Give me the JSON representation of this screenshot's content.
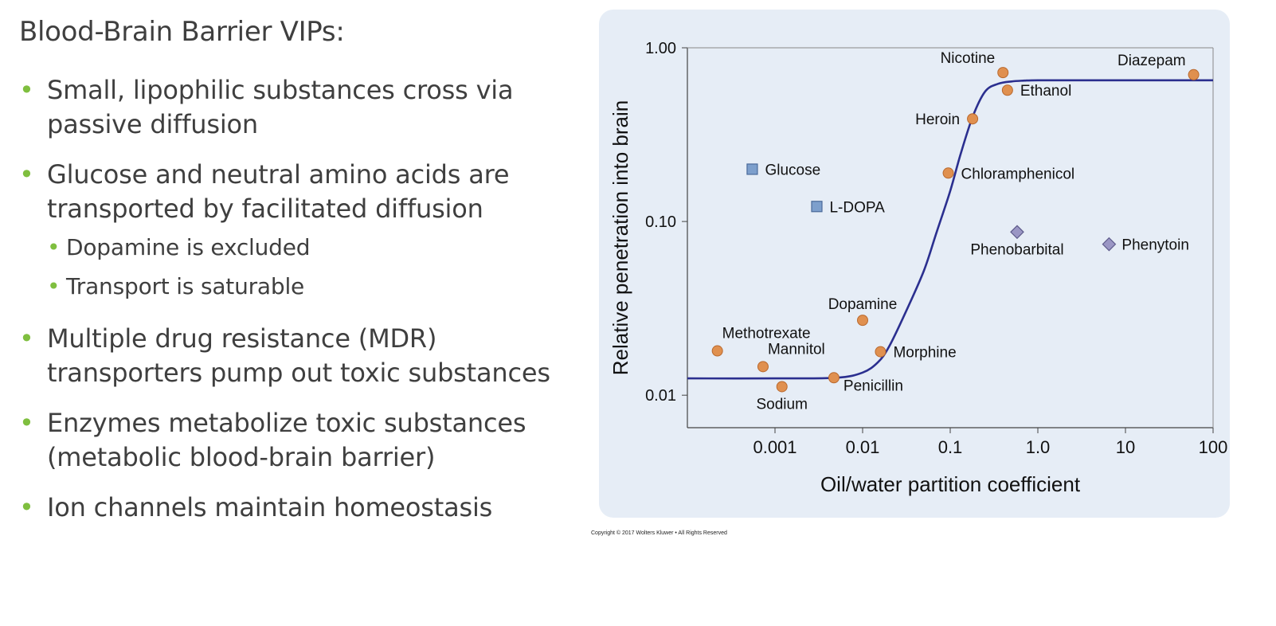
{
  "slide": {
    "title": "Blood-Brain Barrier VIPs:",
    "bullets": [
      {
        "text": "Small, lipophilic substances cross via passive diffusion",
        "subs": []
      },
      {
        "text": "Glucose and neutral amino acids are transported by facilitated diffusion",
        "subs": [
          "Dopamine is excluded",
          "Transport is saturable"
        ]
      },
      {
        "text": "Multiple drug resistance (MDR) transporters pump out toxic substances",
        "subs": []
      },
      {
        "text": "Enzymes metabolize toxic substances (metabolic blood-brain barrier)",
        "subs": []
      },
      {
        "text": "Ion channels maintain homeostasis",
        "subs": []
      }
    ],
    "bullet_color": "#7fbf3f"
  },
  "copyright": "Copyright © 2017 Wolters Kluwer • All Rights Reserved",
  "chart_data": {
    "type": "scatter",
    "title": "",
    "xlabel": "Oil/water partition coefficient",
    "ylabel": "Relative penetration into brain",
    "xscale": "log",
    "yscale": "log",
    "xlim": [
      0.0001,
      100
    ],
    "ylim": [
      0.0065,
      1.0
    ],
    "xticks": [
      {
        "value": 0.001,
        "label": "0.001"
      },
      {
        "value": 0.01,
        "label": "0.01"
      },
      {
        "value": 0.1,
        "label": "0.1"
      },
      {
        "value": 1,
        "label": "1.0"
      },
      {
        "value": 10,
        "label": "10"
      },
      {
        "value": 100,
        "label": "100"
      }
    ],
    "yticks": [
      {
        "value": 0.01,
        "label": "0.01"
      },
      {
        "value": 0.1,
        "label": "0.10"
      },
      {
        "value": 1.0,
        "label": "1.00"
      }
    ],
    "grid": false,
    "legend": "none",
    "colors": {
      "circle": "#e0904f",
      "square": "#7d9fcc",
      "diamond": "#9a96c4",
      "curve": "#2b2f8f",
      "panel": "#e6edf6"
    },
    "points": [
      {
        "name": "Nicotine",
        "x": 0.4,
        "y": 0.72,
        "marker": "circle",
        "label_pos": "above-left"
      },
      {
        "name": "Diazepam",
        "x": 60,
        "y": 0.7,
        "marker": "circle",
        "label_pos": "above-left"
      },
      {
        "name": "Ethanol",
        "x": 0.45,
        "y": 0.57,
        "marker": "circle",
        "label_pos": "right"
      },
      {
        "name": "Heroin",
        "x": 0.18,
        "y": 0.39,
        "marker": "circle",
        "label_pos": "left"
      },
      {
        "name": "Chloramphenicol",
        "x": 0.095,
        "y": 0.19,
        "marker": "circle",
        "label_pos": "right"
      },
      {
        "name": "Glucose",
        "x": 0.00055,
        "y": 0.2,
        "marker": "square",
        "label_pos": "right"
      },
      {
        "name": "L-DOPA",
        "x": 0.003,
        "y": 0.122,
        "marker": "square",
        "label_pos": "right"
      },
      {
        "name": "Phenobarbital",
        "x": 0.58,
        "y": 0.087,
        "marker": "diamond",
        "label_pos": "below"
      },
      {
        "name": "Phenytoin",
        "x": 6.5,
        "y": 0.074,
        "marker": "diamond",
        "label_pos": "right"
      },
      {
        "name": "Dopamine",
        "x": 0.01,
        "y": 0.027,
        "marker": "circle",
        "label_pos": "above"
      },
      {
        "name": "Methotrexate",
        "x": 0.00022,
        "y": 0.018,
        "marker": "circle",
        "label_pos": "above-right"
      },
      {
        "name": "Mannitol",
        "x": 0.00073,
        "y": 0.0146,
        "marker": "circle",
        "label_pos": "above-right"
      },
      {
        "name": "Morphine",
        "x": 0.016,
        "y": 0.0178,
        "marker": "circle",
        "label_pos": "right"
      },
      {
        "name": "Sodium",
        "x": 0.0012,
        "y": 0.0112,
        "marker": "circle",
        "label_pos": "below"
      },
      {
        "name": "Penicillin",
        "x": 0.0047,
        "y": 0.0126,
        "marker": "circle",
        "label_pos": "below-right"
      }
    ],
    "curve": {
      "type": "sigmoid",
      "x": [
        0.0001,
        0.001,
        0.005,
        0.01,
        0.015,
        0.02,
        0.03,
        0.05,
        0.07,
        0.1,
        0.13,
        0.18,
        0.25,
        0.35,
        0.5,
        0.7,
        1.0,
        3.0,
        10,
        100
      ],
      "y": [
        0.0125,
        0.0125,
        0.0126,
        0.0135,
        0.0155,
        0.019,
        0.029,
        0.052,
        0.087,
        0.15,
        0.24,
        0.4,
        0.56,
        0.62,
        0.64,
        0.647,
        0.65,
        0.65,
        0.65,
        0.65
      ]
    }
  }
}
